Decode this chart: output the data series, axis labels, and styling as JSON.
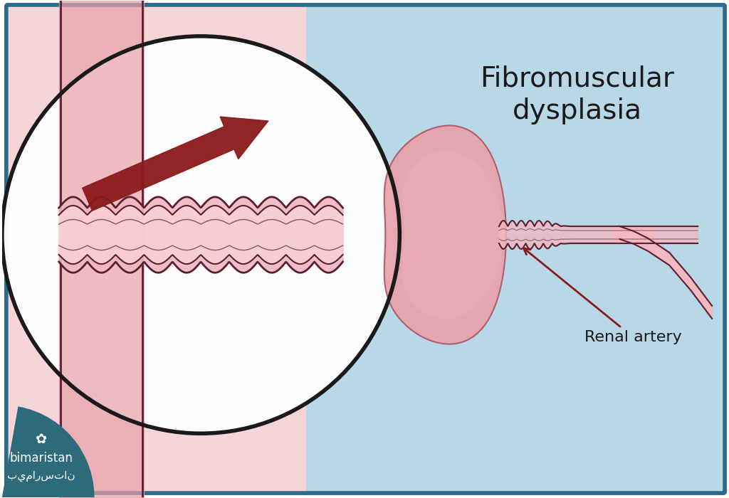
{
  "bg_color": "#ffffff",
  "border_color": "#2e6b8a",
  "light_blue_bg": "#b8d8e8",
  "kidney_color": "#e8a0a8",
  "kidney_outline": "#b06070",
  "artery_fill": "#f0b8c0",
  "artery_outline": "#5a2030",
  "blood_red": "#8b1a1a",
  "circle_color": "#1a1a1a",
  "text_color": "#1a1a1a",
  "label_text": "Renal artery",
  "main_title_line1": "Fibromuscular",
  "main_title_line2": "dysplasia",
  "bimaristan_teal": "#2e6b7a",
  "title_fontsize": 28,
  "label_fontsize": 16,
  "logo_fontsize": 14
}
